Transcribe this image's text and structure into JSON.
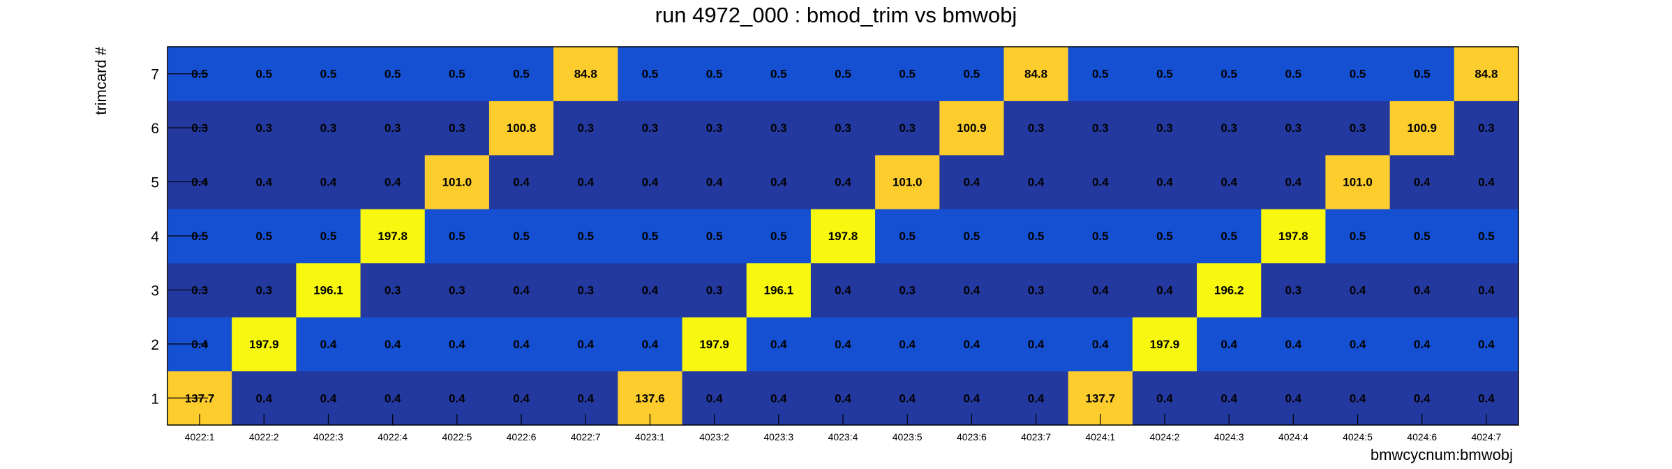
{
  "chart_data": {
    "type": "heatmap",
    "title": "run 4972_000 : bmod_trim vs bmwobj",
    "xlabel": "bmwcycnum:bmwobj",
    "ylabel": "trimcard #",
    "x_categories": [
      "4022:1",
      "4022:2",
      "4022:3",
      "4022:4",
      "4022:5",
      "4022:6",
      "4022:7",
      "4023:1",
      "4023:2",
      "4023:3",
      "4023:4",
      "4023:5",
      "4023:6",
      "4023:7",
      "4024:1",
      "4024:2",
      "4024:3",
      "4024:4",
      "4024:5",
      "4024:6",
      "4024:7"
    ],
    "y_categories": [
      "1",
      "2",
      "3",
      "4",
      "5",
      "6",
      "7"
    ],
    "values": [
      [
        "137.7",
        "0.4",
        "0.4",
        "0.4",
        "0.4",
        "0.4",
        "0.4",
        "137.6",
        "0.4",
        "0.4",
        "0.4",
        "0.4",
        "0.4",
        "0.4",
        "137.7",
        "0.4",
        "0.4",
        "0.4",
        "0.4",
        "0.4",
        "0.4"
      ],
      [
        "0.4",
        "197.9",
        "0.4",
        "0.4",
        "0.4",
        "0.4",
        "0.4",
        "0.4",
        "197.9",
        "0.4",
        "0.4",
        "0.4",
        "0.4",
        "0.4",
        "0.4",
        "197.9",
        "0.4",
        "0.4",
        "0.4",
        "0.4",
        "0.4"
      ],
      [
        "0.3",
        "0.3",
        "196.1",
        "0.3",
        "0.3",
        "0.4",
        "0.3",
        "0.4",
        "0.3",
        "196.1",
        "0.4",
        "0.3",
        "0.4",
        "0.3",
        "0.4",
        "0.4",
        "196.2",
        "0.3",
        "0.4",
        "0.4",
        "0.4"
      ],
      [
        "0.5",
        "0.5",
        "0.5",
        "197.8",
        "0.5",
        "0.5",
        "0.5",
        "0.5",
        "0.5",
        "0.5",
        "197.8",
        "0.5",
        "0.5",
        "0.5",
        "0.5",
        "0.5",
        "0.5",
        "197.8",
        "0.5",
        "0.5",
        "0.5"
      ],
      [
        "0.4",
        "0.4",
        "0.4",
        "0.4",
        "101.0",
        "0.4",
        "0.4",
        "0.4",
        "0.4",
        "0.4",
        "0.4",
        "101.0",
        "0.4",
        "0.4",
        "0.4",
        "0.4",
        "0.4",
        "0.4",
        "101.0",
        "0.4",
        "0.4"
      ],
      [
        "0.3",
        "0.3",
        "0.3",
        "0.3",
        "0.3",
        "100.8",
        "0.3",
        "0.3",
        "0.3",
        "0.3",
        "0.3",
        "0.3",
        "100.9",
        "0.3",
        "0.3",
        "0.3",
        "0.3",
        "0.3",
        "0.3",
        "100.9",
        "0.3"
      ],
      [
        "0.5",
        "0.5",
        "0.5",
        "0.5",
        "0.5",
        "0.5",
        "84.8",
        "0.5",
        "0.5",
        "0.5",
        "0.5",
        "0.5",
        "0.5",
        "84.8",
        "0.5",
        "0.5",
        "0.5",
        "0.5",
        "0.5",
        "0.5",
        "84.8"
      ]
    ],
    "colors": {
      "bin_low": "#24399f",
      "bin_midlow": "#1b4bcc",
      "bin_mid": "#1450d1",
      "bin_high": "#fccd2d",
      "bin_peak": "#f7f710"
    },
    "grid": false,
    "legend": "none"
  }
}
